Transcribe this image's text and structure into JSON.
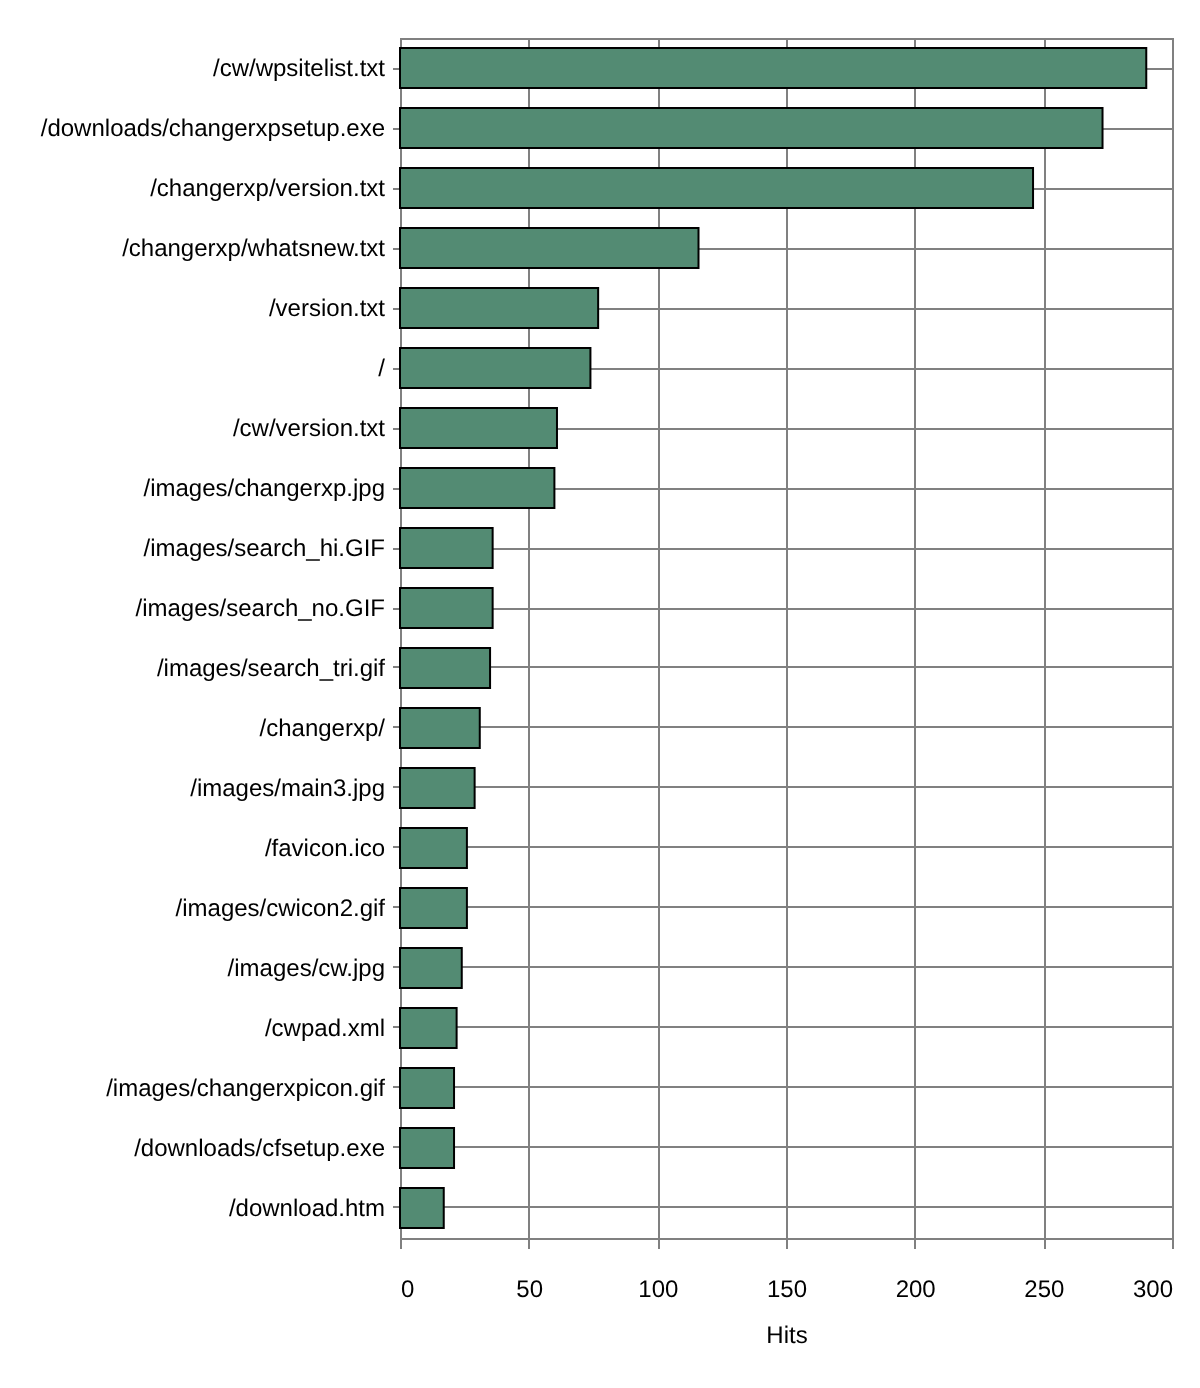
{
  "chart_data": {
    "type": "bar",
    "orientation": "horizontal",
    "categories": [
      "/cw/wpsitelist.txt",
      "/downloads/changerxpsetup.exe",
      "/changerxp/version.txt",
      "/changerxp/whatsnew.txt",
      "/version.txt",
      "/",
      "/cw/version.txt",
      "/images/changerxp.jpg",
      "/images/search_hi.GIF",
      "/images/search_no.GIF",
      "/images/search_tri.gif",
      "/changerxp/",
      "/images/main3.jpg",
      "/favicon.ico",
      "/images/cwicon2.gif",
      "/images/cw.jpg",
      "/cwpad.xml",
      "/images/changerxpicon.gif",
      "/downloads/cfsetup.exe",
      "/download.htm"
    ],
    "values": [
      290,
      273,
      246,
      116,
      77,
      74,
      61,
      60,
      36,
      36,
      35,
      31,
      29,
      26,
      26,
      24,
      22,
      21,
      21,
      17
    ],
    "color": "#538b73",
    "xlabel": "Hits",
    "xlim": [
      0,
      300
    ],
    "xticks": [
      0,
      50,
      100,
      150,
      200,
      250,
      300
    ],
    "grid": true
  }
}
